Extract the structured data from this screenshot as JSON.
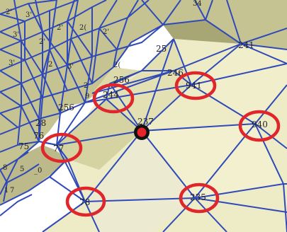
{
  "colors": {
    "mesh_edge": "#2f49b8",
    "face_light": "#eeecc6",
    "face_mid": "#d9d6a6",
    "face_dark": "#b9b684",
    "ring": "#e0262a",
    "vertex_fill": "#e8242a",
    "vertex_outline": "#111111",
    "background": "#ffffff"
  },
  "labels": {
    "center_vertex": "237",
    "highlighted": [
      "244",
      "941",
      "940",
      "77",
      "78",
      "235"
    ],
    "other": [
      "246",
      "241",
      "256",
      "256",
      "25",
      "28",
      "76",
      "75",
      "34"
    ],
    "partial": [
      "2'",
      "3'",
      "2'",
      "2(",
      "2'",
      "3'",
      "2'",
      "3'",
      "2",
      "3'",
      "9",
      "8",
      "5",
      "1",
      "7",
      "_0",
      "2(",
      "2"
    ]
  }
}
